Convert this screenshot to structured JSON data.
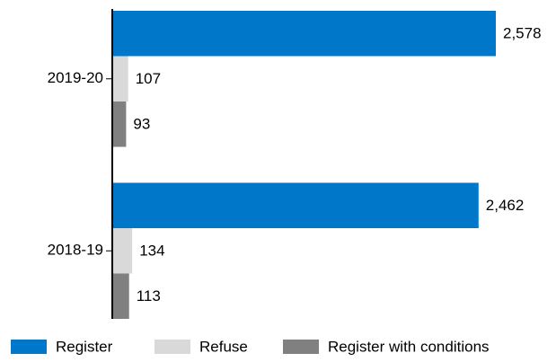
{
  "chart_data": {
    "type": "hbar",
    "categories": [
      "2019-20",
      "2018-19"
    ],
    "series": [
      {
        "name": "Register",
        "color": "#0077c8",
        "values": [
          2578,
          2462
        ],
        "value_labels": [
          "2,578",
          "2,462"
        ]
      },
      {
        "name": "Refuse",
        "color": "#d9d9d9",
        "values": [
          107,
          134
        ]
      },
      {
        "name": "Register with conditions",
        "color": "#808080",
        "values": [
          93,
          113
        ]
      }
    ],
    "legend": "bottom"
  }
}
